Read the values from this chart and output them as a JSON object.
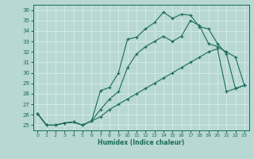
{
  "xlabel": "Humidex (Indice chaleur)",
  "xlim": [
    -0.5,
    23.5
  ],
  "ylim": [
    24.5,
    36.5
  ],
  "yticks": [
    25,
    26,
    27,
    28,
    29,
    30,
    31,
    32,
    33,
    34,
    35,
    36
  ],
  "xticks": [
    0,
    1,
    2,
    3,
    4,
    5,
    6,
    7,
    8,
    9,
    10,
    11,
    12,
    13,
    14,
    15,
    16,
    17,
    18,
    19,
    20,
    21,
    22,
    23
  ],
  "bg_color": "#b8d8d4",
  "grid_color": "#d8ecea",
  "line_color": "#1a6b5a",
  "line1_x": [
    0,
    1,
    2,
    3,
    4,
    5,
    6,
    7,
    8,
    9,
    10,
    11,
    12,
    13,
    14,
    15,
    16,
    17,
    18,
    19,
    20,
    21,
    22,
    23
  ],
  "line1_y": [
    26.1,
    25.0,
    25.0,
    25.2,
    25.3,
    25.0,
    25.4,
    28.3,
    28.6,
    30.0,
    33.2,
    33.4,
    34.2,
    34.8,
    35.8,
    35.2,
    35.6,
    35.5,
    34.4,
    34.2,
    32.8,
    31.8,
    28.5,
    28.8
  ],
  "line2_x": [
    0,
    1,
    2,
    3,
    4,
    5,
    6,
    7,
    8,
    9,
    10,
    11,
    12,
    13,
    14,
    15,
    16,
    17,
    18,
    19,
    20,
    21,
    22,
    23
  ],
  "line2_y": [
    26.1,
    25.0,
    25.0,
    25.2,
    25.3,
    25.0,
    25.4,
    26.5,
    27.5,
    28.2,
    30.5,
    31.8,
    32.5,
    33.0,
    33.5,
    33.0,
    33.5,
    35.0,
    34.5,
    32.8,
    32.5,
    32.0,
    31.5,
    28.8
  ],
  "line3_x": [
    0,
    1,
    2,
    3,
    4,
    5,
    6,
    7,
    8,
    9,
    10,
    11,
    12,
    13,
    14,
    15,
    16,
    17,
    18,
    19,
    20,
    21,
    22,
    23
  ],
  "line3_y": [
    26.1,
    25.0,
    25.0,
    25.2,
    25.3,
    25.0,
    25.4,
    25.8,
    26.5,
    27.0,
    27.5,
    28.0,
    28.5,
    29.0,
    29.5,
    30.0,
    30.5,
    31.0,
    31.5,
    32.0,
    32.3,
    28.2,
    28.5,
    28.8
  ],
  "marker": "+",
  "markersize": 3,
  "linewidth": 0.8
}
